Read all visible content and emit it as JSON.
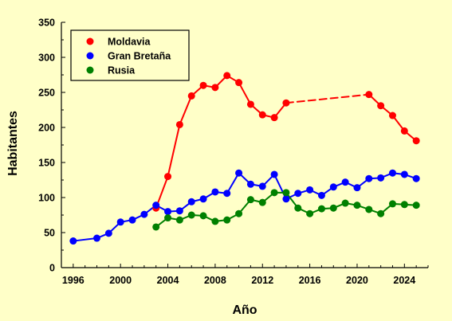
{
  "chart_data": {
    "type": "line",
    "xlabel": "Año",
    "ylabel": "Habitantes",
    "xlim": [
      1995,
      2026
    ],
    "ylim": [
      0,
      350
    ],
    "x_ticks": [
      1996,
      2000,
      2004,
      2008,
      2012,
      2016,
      2020,
      2024
    ],
    "y_ticks": [
      0,
      50,
      100,
      150,
      200,
      250,
      300,
      350
    ],
    "grid": false,
    "legend_position": "top-left",
    "background_color": "#FFFFC8",
    "series": [
      {
        "name": "Moldavia",
        "color": "#FF0000",
        "points": [
          [
            2003,
            85
          ],
          [
            2004,
            130
          ],
          [
            2005,
            204
          ],
          [
            2006,
            245
          ],
          [
            2007,
            260
          ],
          [
            2008,
            257
          ],
          [
            2009,
            274
          ],
          [
            2010,
            264
          ],
          [
            2011,
            233
          ],
          [
            2012,
            218
          ],
          [
            2013,
            214
          ],
          [
            2014,
            235
          ],
          [
            2021,
            247
          ],
          [
            2022,
            231
          ],
          [
            2023,
            217
          ],
          [
            2024,
            195
          ],
          [
            2025,
            181
          ]
        ],
        "dashed_segments": [
          [
            2014,
            2021
          ]
        ]
      },
      {
        "name": "Gran Bretaña",
        "color": "#0000FF",
        "points": [
          [
            1996,
            38
          ],
          [
            1998,
            42
          ],
          [
            1999,
            49
          ],
          [
            2000,
            65
          ],
          [
            2001,
            68
          ],
          [
            2002,
            76
          ],
          [
            2003,
            89
          ],
          [
            2004,
            80
          ],
          [
            2005,
            81
          ],
          [
            2006,
            94
          ],
          [
            2007,
            98
          ],
          [
            2008,
            108
          ],
          [
            2009,
            106
          ],
          [
            2010,
            135
          ],
          [
            2011,
            119
          ],
          [
            2012,
            116
          ],
          [
            2013,
            133
          ],
          [
            2014,
            98
          ],
          [
            2015,
            106
          ],
          [
            2016,
            111
          ],
          [
            2017,
            103
          ],
          [
            2018,
            115
          ],
          [
            2019,
            122
          ],
          [
            2020,
            114
          ],
          [
            2021,
            127
          ],
          [
            2022,
            128
          ],
          [
            2023,
            135
          ],
          [
            2024,
            133
          ],
          [
            2025,
            127
          ]
        ]
      },
      {
        "name": "Rusia",
        "color": "#008000",
        "points": [
          [
            2003,
            58
          ],
          [
            2004,
            71
          ],
          [
            2005,
            68
          ],
          [
            2006,
            75
          ],
          [
            2007,
            74
          ],
          [
            2008,
            66
          ],
          [
            2009,
            68
          ],
          [
            2010,
            77
          ],
          [
            2011,
            97
          ],
          [
            2012,
            93
          ],
          [
            2013,
            107
          ],
          [
            2014,
            107
          ],
          [
            2015,
            85
          ],
          [
            2016,
            77
          ],
          [
            2017,
            84
          ],
          [
            2018,
            85
          ],
          [
            2019,
            92
          ],
          [
            2020,
            89
          ],
          [
            2021,
            83
          ],
          [
            2022,
            77
          ],
          [
            2023,
            91
          ],
          [
            2024,
            90
          ],
          [
            2025,
            89
          ]
        ]
      }
    ]
  }
}
